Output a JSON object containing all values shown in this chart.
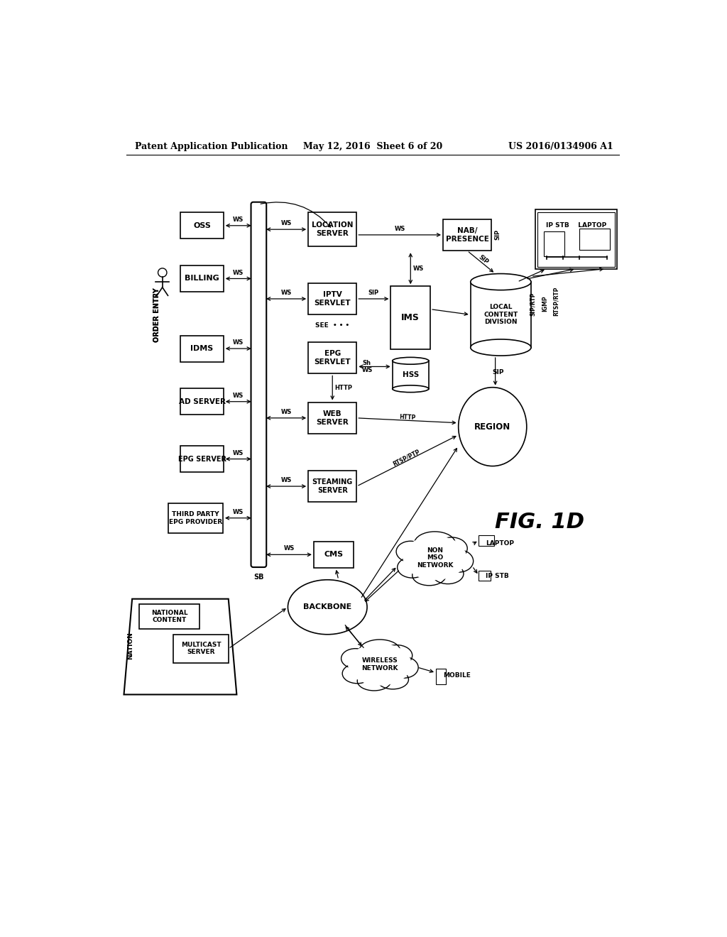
{
  "title_left": "Patent Application Publication",
  "title_mid": "May 12, 2016  Sheet 6 of 20",
  "title_right": "US 2016/0134906 A1",
  "fig_label": "FIG. 1D",
  "bg_color": "#ffffff"
}
